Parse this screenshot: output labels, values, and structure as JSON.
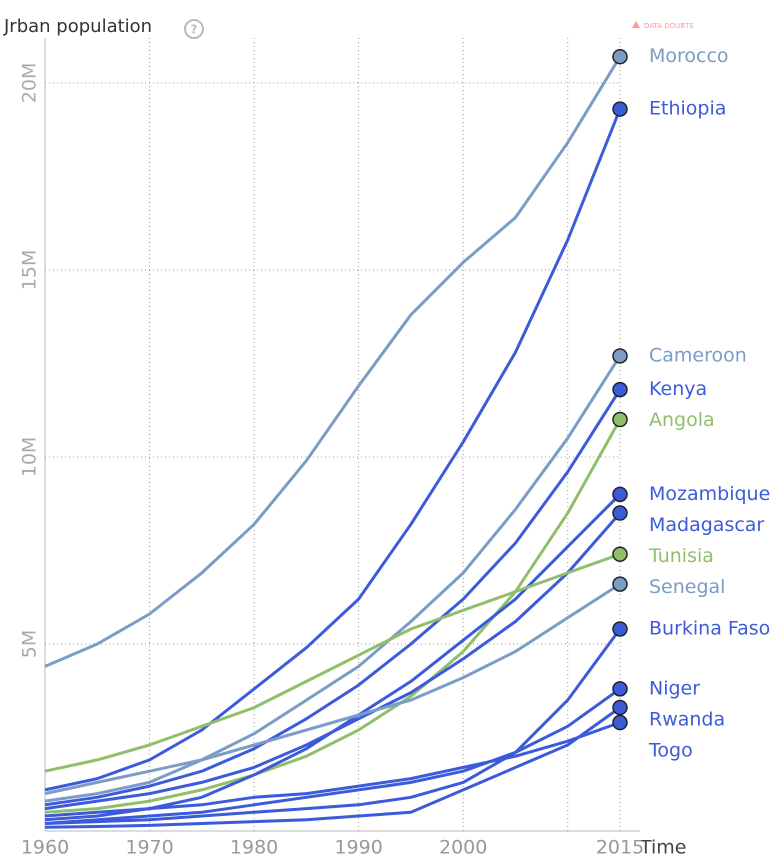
{
  "chart_data": {
    "type": "line",
    "title": "Jrban population",
    "badge": "DATA DOUBTS",
    "x_label": "Time",
    "x": [
      1960,
      1965,
      1970,
      1975,
      1980,
      1985,
      1990,
      1995,
      2000,
      2005,
      2010,
      2015
    ],
    "xlim": [
      1960,
      2015
    ],
    "xticks": [
      1960,
      1970,
      1980,
      1990,
      2000,
      2015
    ],
    "xgrid": [
      1970,
      1980,
      1990,
      2000,
      2010,
      2015
    ],
    "ylim": [
      0,
      21.2
    ],
    "yticks": [
      {
        "value": 5,
        "label": "5M"
      },
      {
        "value": 10,
        "label": "10M"
      },
      {
        "value": 15,
        "label": "15M"
      },
      {
        "value": 20,
        "label": "20M"
      }
    ],
    "grid": true,
    "series": [
      {
        "name": "Morocco",
        "color": "#7a9cc6",
        "values": [
          4.4,
          5.0,
          5.8,
          6.9,
          8.2,
          9.9,
          11.9,
          13.8,
          15.2,
          16.4,
          18.4,
          20.7
        ]
      },
      {
        "name": "Ethiopia",
        "color": "#3b5bdb",
        "values": [
          1.1,
          1.4,
          1.9,
          2.7,
          3.8,
          4.9,
          6.2,
          8.2,
          10.4,
          12.8,
          15.8,
          19.3
        ]
      },
      {
        "name": "Cameroon",
        "color": "#7a9cc6",
        "values": [
          0.8,
          1.0,
          1.3,
          1.9,
          2.6,
          3.5,
          4.4,
          5.6,
          6.9,
          8.6,
          10.5,
          12.7
        ]
      },
      {
        "name": "Kenya",
        "color": "#3b5bdb",
        "values": [
          0.7,
          0.9,
          1.2,
          1.6,
          2.2,
          3.0,
          3.9,
          5.0,
          6.2,
          7.7,
          9.6,
          11.8
        ]
      },
      {
        "name": "Angola",
        "color": "#8fbf6a",
        "values": [
          0.5,
          0.6,
          0.8,
          1.1,
          1.5,
          2.0,
          2.7,
          3.6,
          4.8,
          6.4,
          8.5,
          11.0
        ]
      },
      {
        "name": "Mozambique",
        "color": "#3b5bdb",
        "values": [
          0.3,
          0.4,
          0.6,
          0.9,
          1.5,
          2.2,
          3.1,
          4.0,
          5.1,
          6.2,
          7.6,
          9.0
        ]
      },
      {
        "name": "Madagascar",
        "color": "#3b5bdb",
        "values": [
          0.6,
          0.8,
          1.0,
          1.3,
          1.7,
          2.3,
          3.0,
          3.7,
          4.6,
          5.6,
          6.9,
          8.5
        ]
      },
      {
        "name": "Tunisia",
        "color": "#8fbf6a",
        "values": [
          1.6,
          1.9,
          2.3,
          2.8,
          3.3,
          4.0,
          4.7,
          5.4,
          5.9,
          6.4,
          6.9,
          7.4
        ]
      },
      {
        "name": "Senegal",
        "color": "#7a9cc6",
        "values": [
          1.0,
          1.3,
          1.6,
          1.9,
          2.3,
          2.7,
          3.1,
          3.5,
          4.1,
          4.8,
          5.7,
          6.6
        ]
      },
      {
        "name": "Burkina Faso",
        "color": "#3b5bdb",
        "values": [
          0.2,
          0.25,
          0.3,
          0.4,
          0.5,
          0.6,
          0.7,
          0.9,
          1.3,
          2.1,
          3.5,
          5.4
        ]
      },
      {
        "name": "Niger",
        "color": "#3b5bdb",
        "values": [
          0.2,
          0.3,
          0.4,
          0.5,
          0.7,
          0.9,
          1.1,
          1.3,
          1.6,
          2.1,
          2.8,
          3.8
        ]
      },
      {
        "name": "Rwanda",
        "color": "#3b5bdb",
        "values": [
          0.1,
          0.12,
          0.15,
          0.2,
          0.25,
          0.3,
          0.4,
          0.5,
          1.1,
          1.7,
          2.3,
          3.3
        ]
      },
      {
        "name": "Togo",
        "color": "#3b5bdb",
        "values": [
          0.4,
          0.5,
          0.6,
          0.7,
          0.9,
          1.0,
          1.2,
          1.4,
          1.7,
          2.0,
          2.4,
          2.9
        ]
      }
    ]
  }
}
